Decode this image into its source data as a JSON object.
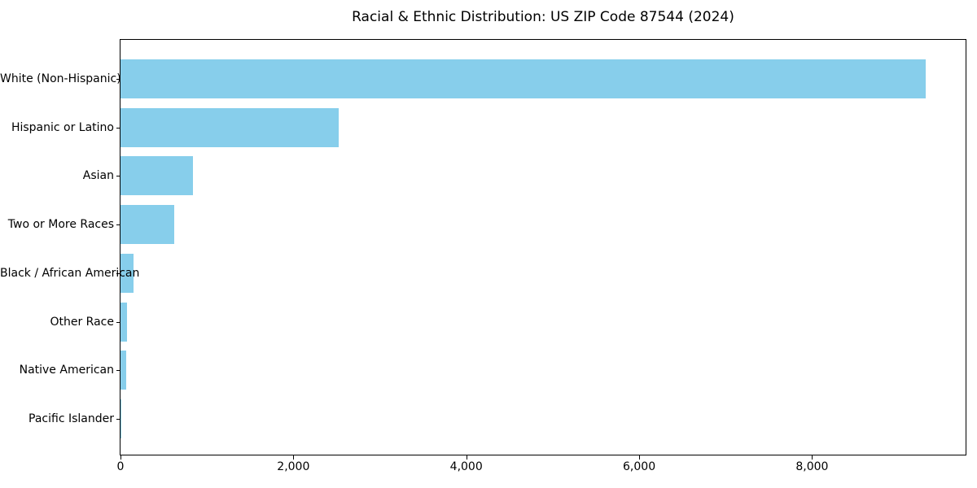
{
  "title": "Racial & Ethnic Distribution: US ZIP Code 87544 (2024)",
  "chart_data": {
    "type": "bar",
    "orientation": "horizontal",
    "title": "Racial & Ethnic Distribution: US ZIP Code 87544 (2024)",
    "xlabel": "",
    "ylabel": "",
    "categories": [
      "White (Non-Hispanic)",
      "Hispanic or Latino",
      "Asian",
      "Two or More Races",
      "Black / African American",
      "Other Race",
      "Native American",
      "Pacific Islander"
    ],
    "values": [
      9310,
      2520,
      840,
      620,
      152,
      78,
      68,
      6
    ],
    "xlim": [
      0,
      9776
    ],
    "x_ticks": [
      0,
      2000,
      4000,
      6000,
      8000
    ],
    "x_tick_labels": [
      "0",
      "2,000",
      "4,000",
      "6,000",
      "8,000"
    ],
    "grid": false,
    "legend": null,
    "bar_color": "#87CEEB",
    "axis_color": "#000000",
    "text_color": "#000000",
    "background_color": "#FFFFFF"
  }
}
